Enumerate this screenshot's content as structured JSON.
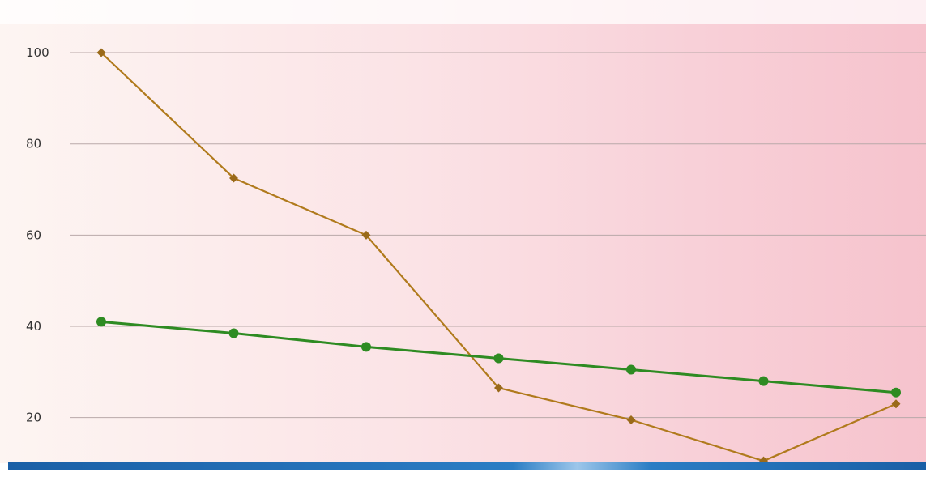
{
  "chart_data": {
    "type": "line",
    "title": "",
    "xlabel": "",
    "ylabel": "",
    "x": [
      1,
      2,
      3,
      4,
      5,
      6,
      7
    ],
    "ylim": [
      10,
      108
    ],
    "yticks": [
      20,
      40,
      60,
      80,
      100
    ],
    "ytick_labels": [
      "20",
      "40",
      "60",
      "80",
      "100"
    ],
    "grid": true,
    "legend": "none",
    "series": [
      {
        "color": "#b07a1c",
        "marker": "diamond",
        "values": [
          100,
          72.5,
          60,
          26.5,
          19.5,
          10.5,
          23
        ]
      },
      {
        "color": "#2e8b22",
        "marker": "circle",
        "values": [
          41,
          38.5,
          35.5,
          33,
          30.5,
          28,
          25.5
        ]
      }
    ]
  },
  "colors": {
    "background_light": "#fdf3f0",
    "background_pink": "#f7c6cf",
    "grid": "#b9a9a9",
    "bottom_bar": "#1f6fb8"
  }
}
